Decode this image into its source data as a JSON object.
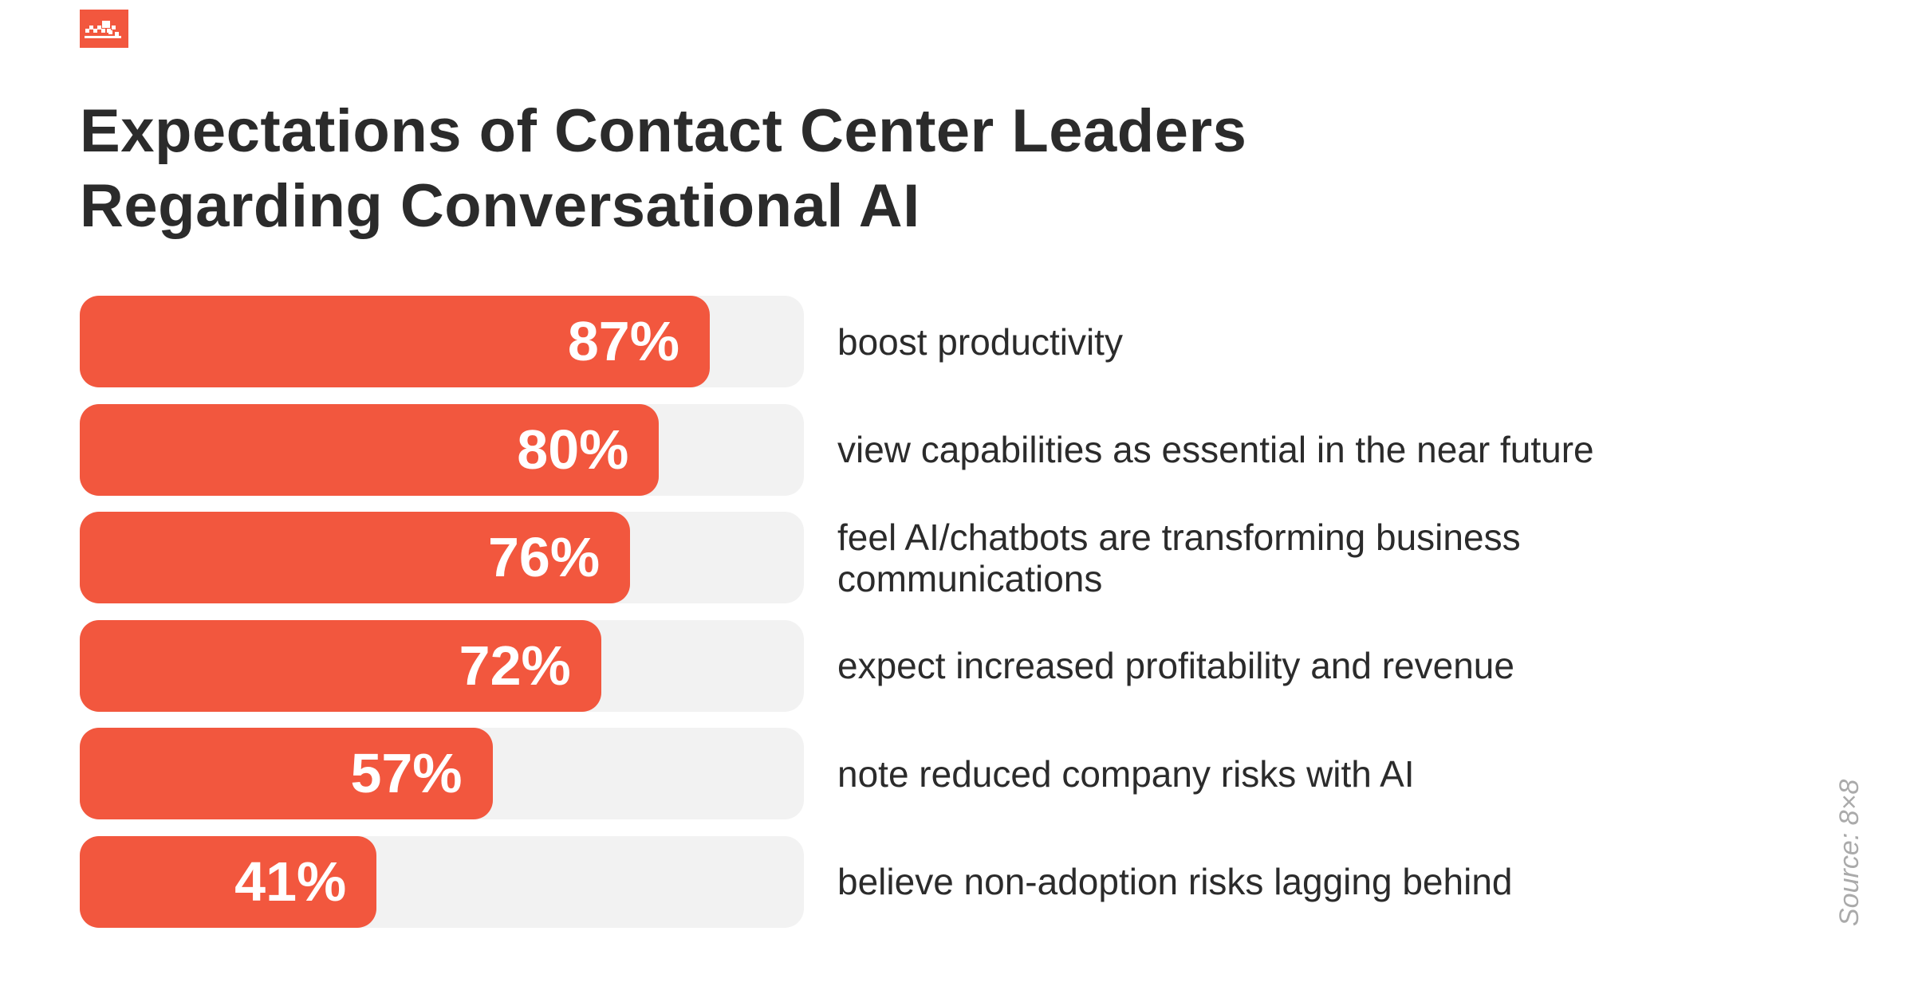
{
  "logo": {
    "icon": "brand-logo",
    "color": "#f2573e"
  },
  "chart_data": {
    "type": "bar",
    "orientation": "horizontal",
    "title": [
      "Expectations of Contact Center Leaders",
      "Regarding Conversational AI"
    ],
    "categories": [
      "boost productivity",
      "view capabilities as essential in the near future",
      "feel AI/chatbots are transforming business communications",
      "expect increased profitability and revenue",
      "note reduced company risks with AI",
      "believe non-adoption risks lagging behind"
    ],
    "values": [
      87,
      80,
      76,
      72,
      57,
      41
    ],
    "value_labels": [
      "87%",
      "80%",
      "76%",
      "72%",
      "57%",
      "41%"
    ],
    "xlim": [
      0,
      100
    ],
    "unit": "%",
    "grid": false,
    "bar_color": "#f2573e",
    "track_color": "#f2f2f2",
    "source": "Source: 8×8"
  }
}
